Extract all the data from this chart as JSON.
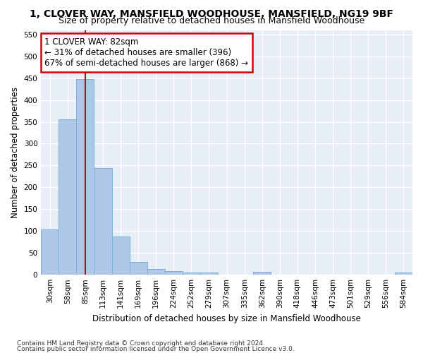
{
  "title": "1, CLOVER WAY, MANSFIELD WOODHOUSE, MANSFIELD, NG19 9BF",
  "subtitle": "Size of property relative to detached houses in Mansfield Woodhouse",
  "xlabel": "Distribution of detached houses by size in Mansfield Woodhouse",
  "ylabel": "Number of detached properties",
  "footnote1": "Contains HM Land Registry data © Crown copyright and database right 2024.",
  "footnote2": "Contains public sector information licensed under the Open Government Licence v3.0.",
  "bar_labels": [
    "30sqm",
    "58sqm",
    "85sqm",
    "113sqm",
    "141sqm",
    "169sqm",
    "196sqm",
    "224sqm",
    "252sqm",
    "279sqm",
    "307sqm",
    "335sqm",
    "362sqm",
    "390sqm",
    "418sqm",
    "446sqm",
    "473sqm",
    "501sqm",
    "529sqm",
    "556sqm",
    "584sqm"
  ],
  "bar_values": [
    103,
    356,
    447,
    245,
    88,
    30,
    13,
    9,
    5,
    5,
    0,
    0,
    6,
    0,
    0,
    0,
    0,
    0,
    0,
    0,
    5
  ],
  "bar_color": "#aec6e8",
  "bar_edge_color": "#7aafd4",
  "ylim": [
    0,
    560
  ],
  "yticks": [
    0,
    50,
    100,
    150,
    200,
    250,
    300,
    350,
    400,
    450,
    500,
    550
  ],
  "vline_x": 2.0,
  "annotation_text": "1 CLOVER WAY: 82sqm\n← 31% of detached houses are smaller (396)\n67% of semi-detached houses are larger (868) →",
  "annotation_box_color": "#ffffff",
  "annotation_box_edge": "#cc0000",
  "vline_color": "#cc0000",
  "bg_color": "#e8eef8",
  "grid_color": "#ffffff",
  "title_fontsize": 10,
  "subtitle_fontsize": 9,
  "axis_label_fontsize": 8.5,
  "tick_fontsize": 7.5,
  "annotation_fontsize": 8.5,
  "ylabel_fontsize": 8.5
}
